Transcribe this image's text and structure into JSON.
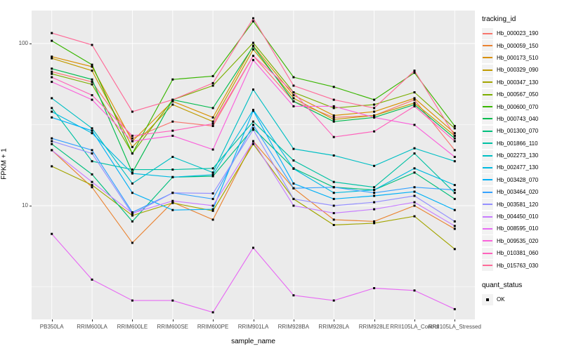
{
  "chart_data": {
    "type": "line",
    "title": "",
    "xlabel": "sample_name",
    "ylabel": "FPKM + 1",
    "y_scale": "log10",
    "y_tick_labels": [
      "100",
      "10"
    ],
    "y_tick_values": [
      100,
      10
    ],
    "y_minor_values": [
      31.62,
      3.162
    ],
    "ylim": [
      2.0,
      160
    ],
    "grid": true,
    "legend_position": "right",
    "legend_title": "tracking_id",
    "marker": "black-square",
    "categories": [
      "PB350LA",
      "RRIM600LA",
      "RRIM600LE",
      "RRIM600SE",
      "RRIM600PE",
      "RRIM901LA",
      "RRIM928BA",
      "RRIM928LA",
      "RRIM928LE",
      "RRII105LA_Control",
      "RRII105LA_Stressed"
    ],
    "series": [
      {
        "name": "Hb_000023_190",
        "color": "#F8766D",
        "values": [
          67,
          58,
          26,
          33,
          31,
          84,
          44,
          35,
          36,
          45,
          22
        ]
      },
      {
        "name": "Hb_000059_150",
        "color": "#EA8331",
        "values": [
          22,
          13,
          5.9,
          10.5,
          8.2,
          25,
          12.8,
          8.2,
          8,
          10,
          7.2
        ]
      },
      {
        "name": "Hb_000173_510",
        "color": "#D89000",
        "values": [
          83,
          72,
          25,
          44,
          35,
          97,
          48,
          36,
          38,
          46,
          28
        ]
      },
      {
        "name": "Hb_000329_090",
        "color": "#C09B00",
        "values": [
          81,
          68,
          23,
          42,
          33,
          92,
          46,
          34,
          36,
          43,
          27
        ]
      },
      {
        "name": "Hb_000347_130",
        "color": "#A3A500",
        "values": [
          17.5,
          13.4,
          8.7,
          10.4,
          9.3,
          24,
          11,
          7.6,
          7.8,
          8.6,
          5.4
        ]
      },
      {
        "name": "Hb_000567_050",
        "color": "#7CAE00",
        "values": [
          65,
          56,
          21,
          45,
          55,
          101,
          50,
          40,
          42,
          50,
          30
        ]
      },
      {
        "name": "Hb_000600_070",
        "color": "#39B600",
        "values": [
          104,
          74,
          21,
          60,
          63,
          137,
          62,
          54,
          45,
          66,
          31
        ]
      },
      {
        "name": "Hb_000743_040",
        "color": "#00BB4E",
        "values": [
          70,
          60,
          16,
          45,
          40,
          96,
          44,
          33,
          35,
          42,
          26
        ]
      },
      {
        "name": "Hb_001300_070",
        "color": "#00BF7D",
        "values": [
          24,
          15.6,
          8,
          15,
          15.2,
          30,
          17,
          13,
          12.5,
          16,
          11
        ]
      },
      {
        "name": "Hb_001866_110",
        "color": "#00C1A3",
        "values": [
          40,
          18.8,
          16.7,
          16.7,
          17,
          33,
          19,
          14,
          13,
          21,
          12
        ]
      },
      {
        "name": "Hb_002273_130",
        "color": "#00BFC4",
        "values": [
          46,
          30,
          13.7,
          20,
          16,
          52,
          22.4,
          20.4,
          17.6,
          22.6,
          18.8
        ]
      },
      {
        "name": "Hb_002477_130",
        "color": "#00BAE0",
        "values": [
          38,
          28,
          15.8,
          15,
          15.5,
          39,
          16.9,
          12,
          12.5,
          17,
          13.4
        ]
      },
      {
        "name": "Hb_003428_070",
        "color": "#00B0F6",
        "values": [
          35,
          29,
          12,
          9.4,
          9.5,
          38.5,
          13.7,
          11,
          11.5,
          12.2,
          9.4
        ]
      },
      {
        "name": "Hb_003464_020",
        "color": "#35A2FF",
        "values": [
          26,
          22,
          9.1,
          12,
          11,
          31.5,
          12.8,
          13,
          12,
          13,
          12.5
        ]
      },
      {
        "name": "Hb_003581_120",
        "color": "#9590FF",
        "values": [
          25,
          21,
          8.9,
          12,
          11.9,
          29.4,
          11,
          10,
          10.5,
          11.5,
          8
        ]
      },
      {
        "name": "Hb_004450_010",
        "color": "#C77CFF",
        "values": [
          22,
          14,
          9,
          10.7,
          10,
          24.9,
          10,
          9,
          9.5,
          10.5,
          7.5
        ]
      },
      {
        "name": "Hb_008595_010",
        "color": "#E76BF3",
        "values": [
          6.7,
          3.5,
          2.6,
          2.6,
          2.2,
          5.5,
          2.8,
          2.6,
          3.1,
          3,
          2.3
        ]
      },
      {
        "name": "Hb_009535_020",
        "color": "#FA62DB",
        "values": [
          58,
          45,
          25,
          27,
          22.2,
          79,
          41,
          41,
          35,
          31.5,
          20
        ]
      },
      {
        "name": "Hb_010381_060",
        "color": "#FF62BC",
        "values": [
          62,
          48,
          27,
          29,
          32,
          84,
          50,
          26.5,
          28.7,
          41,
          25
        ]
      },
      {
        "name": "Hb_015763_030",
        "color": "#FF6A98",
        "values": [
          116,
          98,
          38,
          45,
          57,
          143,
          55,
          45,
          40,
          68,
          27
        ]
      }
    ],
    "quant_legend": {
      "title": "quant_status",
      "items": [
        "OK"
      ]
    }
  },
  "colors": {
    "panel_bg": "#EBEBEB",
    "grid": "#FFFFFF",
    "legend_key_bg": "#F2F2F2",
    "tick_text": "#4D4D4D",
    "axis_title_text": "#000000",
    "marker": "#000000"
  }
}
